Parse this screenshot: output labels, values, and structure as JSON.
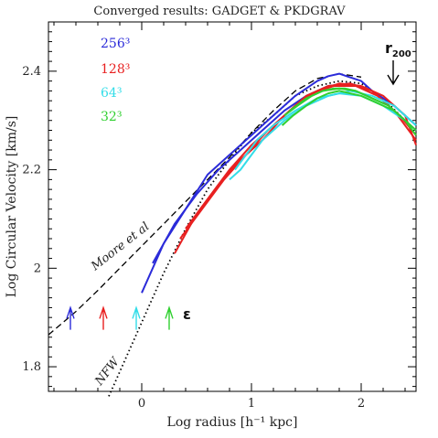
{
  "chart_data": {
    "type": "line",
    "title": "Converged results: GADGET & PKDGRAV",
    "xlabel": "Log radius [h⁻¹ kpc]",
    "ylabel": "Log Circular Velocity [km/s]",
    "xlim": [
      -0.85,
      2.5
    ],
    "ylim": [
      1.75,
      2.5
    ],
    "xticks": [
      {
        "v": 0,
        "label": "0"
      },
      {
        "v": 1,
        "label": "1"
      },
      {
        "v": 2,
        "label": "2"
      }
    ],
    "yticks": [
      {
        "v": 1.8,
        "label": "1.8"
      },
      {
        "v": 2.0,
        "label": "2"
      },
      {
        "v": 2.2,
        "label": "2.2"
      },
      {
        "v": 2.4,
        "label": "2.4"
      }
    ],
    "grid": false,
    "legend_position": "top-left",
    "legend": [
      {
        "label": "256³",
        "color": "#2b2bd9"
      },
      {
        "label": "128³",
        "color": "#e82020"
      },
      {
        "label": "64³",
        "color": "#33dde8"
      },
      {
        "label": "32³",
        "color": "#30d030"
      }
    ],
    "reference_curves": [
      {
        "label": "Moore et al",
        "style": "dashed",
        "color": "#000000",
        "x": [
          -0.85,
          -0.6,
          -0.4,
          -0.2,
          0.0,
          0.2,
          0.4,
          0.6,
          0.8,
          1.0,
          1.2,
          1.4,
          1.6,
          1.8,
          2.0
        ],
        "y": [
          1.865,
          1.912,
          1.955,
          2.0,
          2.045,
          2.09,
          2.135,
          2.18,
          2.225,
          2.275,
          2.32,
          2.36,
          2.385,
          2.395,
          2.388
        ]
      },
      {
        "label": "NFW",
        "style": "dotted",
        "color": "#000000",
        "x": [
          -0.3,
          -0.2,
          -0.1,
          0.0,
          0.2,
          0.4,
          0.6,
          0.8,
          1.0,
          1.2,
          1.4,
          1.6,
          1.8,
          2.0,
          2.2,
          2.4,
          2.5
        ],
        "y": [
          1.74,
          1.79,
          1.84,
          1.89,
          1.99,
          2.08,
          2.16,
          2.22,
          2.275,
          2.31,
          2.35,
          2.37,
          2.38,
          2.375,
          2.345,
          2.3,
          2.27
        ]
      }
    ],
    "series": [
      {
        "color": "#2b2bd9",
        "x": [
          0.0,
          0.2,
          0.4,
          0.6,
          0.8,
          1.0,
          1.2,
          1.4,
          1.6,
          1.7,
          1.8,
          2.0,
          2.2,
          2.4,
          2.5
        ],
        "y": [
          1.95,
          2.05,
          2.12,
          2.19,
          2.23,
          2.27,
          2.31,
          2.35,
          2.38,
          2.39,
          2.395,
          2.38,
          2.34,
          2.3,
          2.28
        ]
      },
      {
        "color": "#2b2bd9",
        "x": [
          0.1,
          0.3,
          0.5,
          0.7,
          0.9,
          1.1,
          1.3,
          1.5,
          1.7,
          1.9,
          2.1,
          2.3,
          2.5
        ],
        "y": [
          2.01,
          2.09,
          2.15,
          2.2,
          2.24,
          2.28,
          2.32,
          2.35,
          2.37,
          2.375,
          2.36,
          2.33,
          2.29
        ]
      },
      {
        "color": "#e82020",
        "x": [
          0.3,
          0.5,
          0.7,
          0.9,
          1.1,
          1.3,
          1.5,
          1.7,
          1.9,
          2.1,
          2.3,
          2.5
        ],
        "y": [
          2.03,
          2.11,
          2.17,
          2.22,
          2.26,
          2.31,
          2.35,
          2.37,
          2.375,
          2.36,
          2.32,
          2.26
        ]
      },
      {
        "color": "#e82020",
        "x": [
          0.35,
          0.55,
          0.75,
          0.95,
          1.15,
          1.35,
          1.55,
          1.75,
          1.95,
          2.15,
          2.35,
          2.5
        ],
        "y": [
          2.06,
          2.12,
          2.18,
          2.23,
          2.28,
          2.32,
          2.355,
          2.37,
          2.37,
          2.35,
          2.31,
          2.27
        ]
      },
      {
        "color": "#e82020",
        "x": [
          0.4,
          0.6,
          0.8,
          1.0,
          1.2,
          1.4,
          1.6,
          1.8,
          2.0,
          2.2,
          2.4,
          2.5
        ],
        "y": [
          2.08,
          2.14,
          2.2,
          2.25,
          2.29,
          2.33,
          2.36,
          2.375,
          2.37,
          2.35,
          2.31,
          2.25
        ]
      },
      {
        "color": "#33dde8",
        "x": [
          0.8,
          0.9,
          1.0,
          1.1,
          1.3,
          1.5,
          1.7,
          1.9,
          2.1,
          2.3,
          2.5
        ],
        "y": [
          2.18,
          2.2,
          2.23,
          2.26,
          2.3,
          2.33,
          2.35,
          2.36,
          2.35,
          2.33,
          2.29
        ]
      },
      {
        "color": "#33dde8",
        "x": [
          0.85,
          0.95,
          1.05,
          1.2,
          1.4,
          1.6,
          1.8,
          2.0,
          2.2,
          2.4,
          2.5
        ],
        "y": [
          2.2,
          2.23,
          2.26,
          2.29,
          2.32,
          2.345,
          2.355,
          2.35,
          2.33,
          2.3,
          2.28
        ]
      },
      {
        "color": "#30d030",
        "x": [
          1.28,
          1.38,
          1.5,
          1.6,
          1.7,
          1.8,
          1.9,
          2.0,
          2.1,
          2.2,
          2.3,
          2.4,
          2.5
        ],
        "y": [
          2.29,
          2.31,
          2.33,
          2.345,
          2.355,
          2.36,
          2.355,
          2.35,
          2.34,
          2.33,
          2.32,
          2.3,
          2.28
        ]
      },
      {
        "color": "#30d030",
        "x": [
          1.3,
          1.42,
          1.55,
          1.65,
          1.75,
          1.85,
          1.95,
          2.05,
          2.15,
          2.25,
          2.35,
          2.45
        ],
        "y": [
          2.31,
          2.33,
          2.35,
          2.36,
          2.365,
          2.365,
          2.36,
          2.35,
          2.34,
          2.33,
          2.31,
          2.29
        ]
      },
      {
        "color": "#30d030",
        "x": [
          1.35,
          1.5,
          1.65,
          1.8,
          1.95,
          2.1,
          2.25,
          2.4,
          2.5
        ],
        "y": [
          2.32,
          2.345,
          2.36,
          2.365,
          2.36,
          2.345,
          2.33,
          2.3,
          2.27
        ]
      }
    ],
    "softening_arrows": [
      {
        "x": -0.65,
        "color": "#2b2bd9"
      },
      {
        "x": -0.35,
        "color": "#e82020"
      },
      {
        "x": -0.05,
        "color": "#33dde8"
      },
      {
        "x": 0.25,
        "color": "#30d030"
      }
    ],
    "softening_label": "ε",
    "r200": {
      "label": "r",
      "sub": "200",
      "x": 2.3
    },
    "annotations": {
      "moore": "Moore et al",
      "nfw": "NFW"
    }
  }
}
